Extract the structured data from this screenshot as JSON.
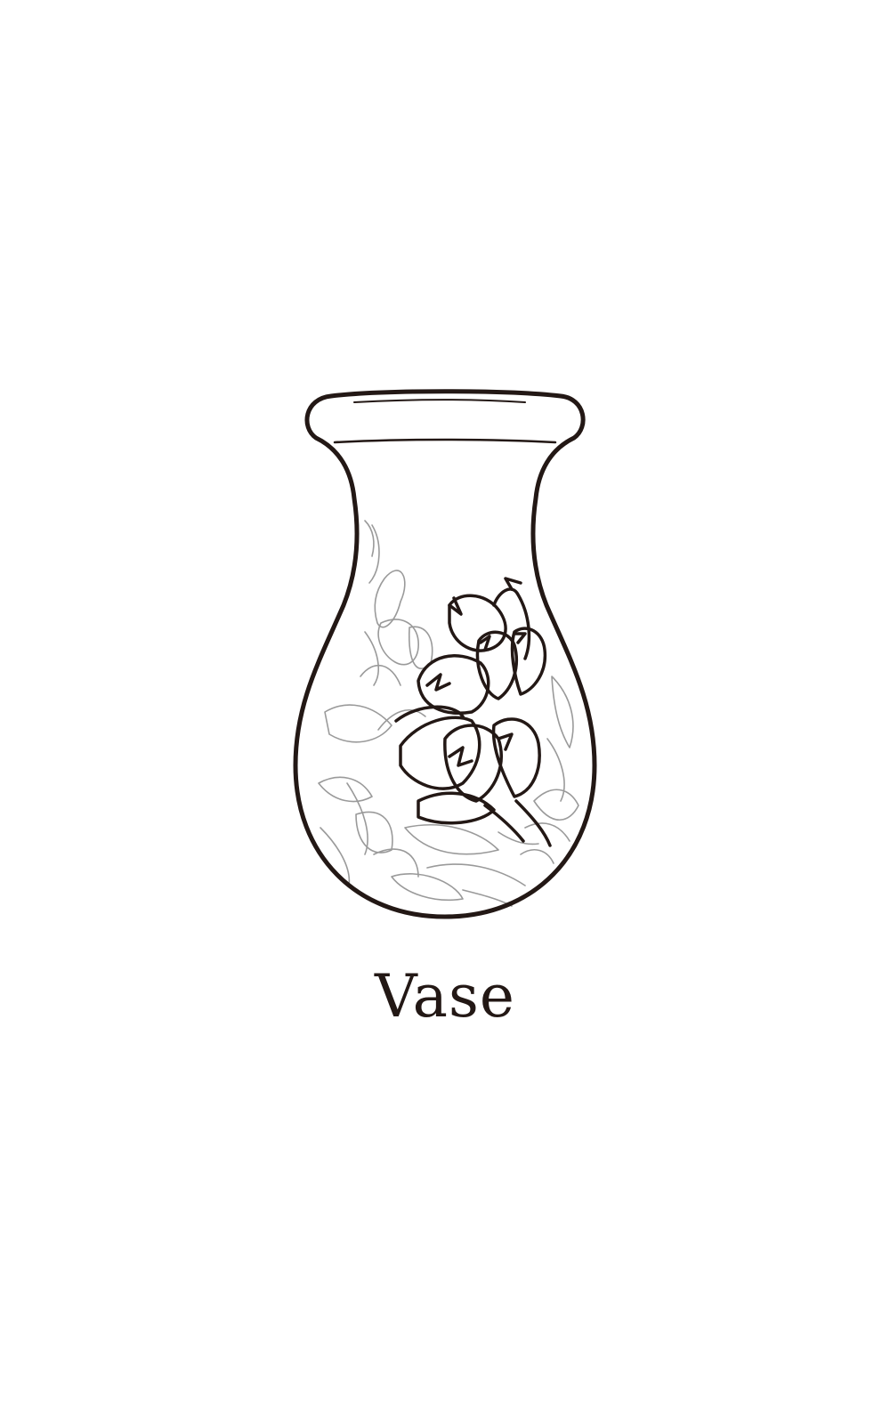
{
  "caption": "Vase",
  "colors": {
    "background": "#ffffff",
    "ink": "#231815",
    "faint_ink": "#9a9a9a"
  },
  "icon": "vase-icon"
}
